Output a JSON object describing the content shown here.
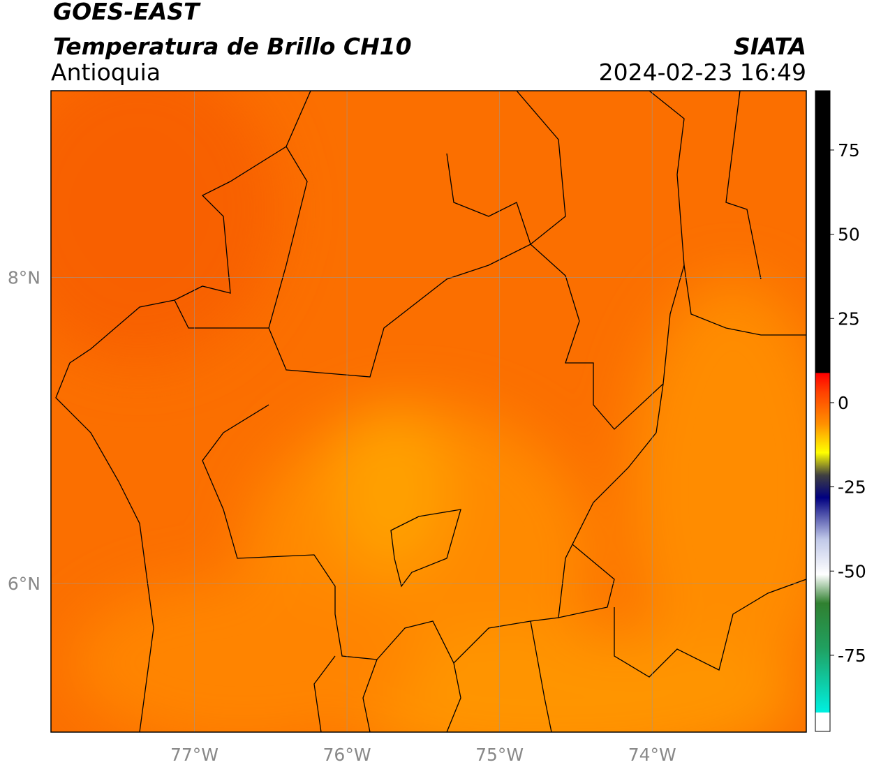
{
  "header": {
    "title": "GOES-EAST",
    "subtitle": "Temperatura de Brillo CH10",
    "region": "Antioquia",
    "source": "SIATA",
    "datetime": "2024-02-23 16:49"
  },
  "map": {
    "lonlim": [
      -77.94,
      -72.99
    ],
    "latlim": [
      5.03,
      9.22
    ],
    "lon_ticks": [
      {
        "value": -77,
        "label": "77°W"
      },
      {
        "value": -76,
        "label": "76°W"
      },
      {
        "value": -75,
        "label": "75°W"
      },
      {
        "value": -74,
        "label": "74°W"
      }
    ],
    "lat_ticks": [
      {
        "value": 8,
        "label": "8°N"
      },
      {
        "value": 6,
        "label": "6°N"
      }
    ]
  },
  "colorbar": {
    "lim": [
      -97.6,
      92.6
    ],
    "ticks": [
      75,
      50,
      25,
      0,
      -25,
      -50,
      -75
    ]
  }
}
